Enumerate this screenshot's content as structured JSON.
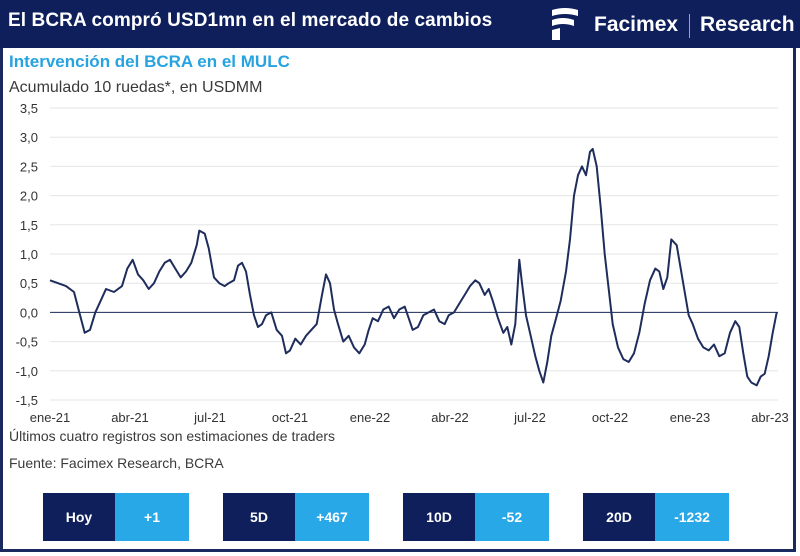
{
  "header": {
    "title": "El BCRA compró USD1mn en el mercado de cambios",
    "brand": "Facimex",
    "brand_section": "Research"
  },
  "colors": {
    "header_bg": "#0e1f5b",
    "accent": "#29a8e8",
    "title_color": "#27a3e0",
    "line": "#1f2d5c"
  },
  "chart_data": {
    "type": "line",
    "title": "Intervención del BCRA en el MULC",
    "subtitle": "Acumulado 10 ruedas*, en USDMM",
    "x_tick_labels": [
      "ene-21",
      "abr-21",
      "jul-21",
      "oct-21",
      "ene-22",
      "abr-22",
      "jul-22",
      "oct-22",
      "ene-23",
      "abr-23"
    ],
    "y_tick_labels": [
      "3,5",
      "3,0",
      "2,5",
      "2,0",
      "1,5",
      "1,0",
      "0,5",
      "0,0",
      "-0,5",
      "-1,0",
      "-1,5"
    ],
    "ylim": [
      -1.5,
      3.5
    ],
    "y_ticks": [
      3.5,
      3.0,
      2.5,
      2.0,
      1.5,
      1.0,
      0.5,
      0.0,
      -0.5,
      -1.0,
      -1.5
    ],
    "x_unit": "months since ene-21",
    "grid": "horizontal",
    "series": [
      {
        "points": [
          [
            0.0,
            0.55
          ],
          [
            0.3,
            0.5
          ],
          [
            0.6,
            0.45
          ],
          [
            0.9,
            0.35
          ],
          [
            1.1,
            0.0
          ],
          [
            1.3,
            -0.35
          ],
          [
            1.5,
            -0.3
          ],
          [
            1.7,
            0.0
          ],
          [
            1.9,
            0.2
          ],
          [
            2.1,
            0.4
          ],
          [
            2.4,
            0.35
          ],
          [
            2.7,
            0.45
          ],
          [
            2.9,
            0.75
          ],
          [
            3.1,
            0.9
          ],
          [
            3.3,
            0.65
          ],
          [
            3.5,
            0.55
          ],
          [
            3.7,
            0.4
          ],
          [
            3.9,
            0.5
          ],
          [
            4.1,
            0.7
          ],
          [
            4.3,
            0.85
          ],
          [
            4.5,
            0.9
          ],
          [
            4.7,
            0.75
          ],
          [
            4.9,
            0.6
          ],
          [
            5.1,
            0.7
          ],
          [
            5.3,
            0.85
          ],
          [
            5.5,
            1.15
          ],
          [
            5.6,
            1.4
          ],
          [
            5.8,
            1.35
          ],
          [
            5.95,
            1.1
          ],
          [
            6.15,
            0.6
          ],
          [
            6.35,
            0.5
          ],
          [
            6.55,
            0.45
          ],
          [
            6.7,
            0.5
          ],
          [
            6.9,
            0.55
          ],
          [
            7.05,
            0.8
          ],
          [
            7.2,
            0.85
          ],
          [
            7.35,
            0.7
          ],
          [
            7.5,
            0.3
          ],
          [
            7.65,
            -0.05
          ],
          [
            7.8,
            -0.25
          ],
          [
            7.95,
            -0.2
          ],
          [
            8.1,
            -0.05
          ],
          [
            8.3,
            0.0
          ],
          [
            8.5,
            -0.3
          ],
          [
            8.7,
            -0.4
          ],
          [
            8.85,
            -0.7
          ],
          [
            9.0,
            -0.65
          ],
          [
            9.2,
            -0.45
          ],
          [
            9.4,
            -0.55
          ],
          [
            9.6,
            -0.4
          ],
          [
            9.8,
            -0.3
          ],
          [
            10.0,
            -0.2
          ],
          [
            10.2,
            0.3
          ],
          [
            10.35,
            0.65
          ],
          [
            10.5,
            0.5
          ],
          [
            10.65,
            0.05
          ],
          [
            10.8,
            -0.2
          ],
          [
            11.0,
            -0.5
          ],
          [
            11.2,
            -0.4
          ],
          [
            11.4,
            -0.6
          ],
          [
            11.6,
            -0.7
          ],
          [
            11.8,
            -0.55
          ],
          [
            11.95,
            -0.3
          ],
          [
            12.1,
            -0.1
          ],
          [
            12.3,
            -0.15
          ],
          [
            12.5,
            0.05
          ],
          [
            12.7,
            0.1
          ],
          [
            12.9,
            -0.1
          ],
          [
            13.1,
            0.05
          ],
          [
            13.3,
            0.1
          ],
          [
            13.45,
            -0.1
          ],
          [
            13.6,
            -0.3
          ],
          [
            13.8,
            -0.25
          ],
          [
            14.0,
            -0.05
          ],
          [
            14.2,
            0.0
          ],
          [
            14.4,
            0.05
          ],
          [
            14.6,
            -0.15
          ],
          [
            14.8,
            -0.2
          ],
          [
            14.95,
            -0.05
          ],
          [
            15.15,
            0.0
          ],
          [
            15.35,
            0.15
          ],
          [
            15.55,
            0.3
          ],
          [
            15.75,
            0.45
          ],
          [
            15.95,
            0.55
          ],
          [
            16.1,
            0.5
          ],
          [
            16.3,
            0.3
          ],
          [
            16.45,
            0.4
          ],
          [
            16.6,
            0.2
          ],
          [
            16.8,
            -0.1
          ],
          [
            17.0,
            -0.35
          ],
          [
            17.15,
            -0.25
          ],
          [
            17.3,
            -0.55
          ],
          [
            17.45,
            -0.2
          ],
          [
            17.6,
            0.9
          ],
          [
            17.7,
            0.5
          ],
          [
            17.85,
            -0.05
          ],
          [
            18.0,
            -0.35
          ],
          [
            18.2,
            -0.75
          ],
          [
            18.35,
            -1.0
          ],
          [
            18.5,
            -1.2
          ],
          [
            18.65,
            -0.85
          ],
          [
            18.8,
            -0.4
          ],
          [
            18.95,
            -0.15
          ],
          [
            19.15,
            0.2
          ],
          [
            19.35,
            0.7
          ],
          [
            19.5,
            1.25
          ],
          [
            19.65,
            2.0
          ],
          [
            19.8,
            2.35
          ],
          [
            19.95,
            2.5
          ],
          [
            20.1,
            2.35
          ],
          [
            20.25,
            2.75
          ],
          [
            20.35,
            2.8
          ],
          [
            20.5,
            2.5
          ],
          [
            20.65,
            1.8
          ],
          [
            20.8,
            1.0
          ],
          [
            20.95,
            0.4
          ],
          [
            21.1,
            -0.2
          ],
          [
            21.3,
            -0.6
          ],
          [
            21.5,
            -0.8
          ],
          [
            21.7,
            -0.85
          ],
          [
            21.9,
            -0.7
          ],
          [
            22.1,
            -0.35
          ],
          [
            22.3,
            0.15
          ],
          [
            22.5,
            0.55
          ],
          [
            22.7,
            0.75
          ],
          [
            22.85,
            0.7
          ],
          [
            23.0,
            0.4
          ],
          [
            23.15,
            0.6
          ],
          [
            23.3,
            1.25
          ],
          [
            23.5,
            1.15
          ],
          [
            23.65,
            0.75
          ],
          [
            23.8,
            0.35
          ],
          [
            23.95,
            -0.05
          ],
          [
            24.1,
            -0.2
          ],
          [
            24.3,
            -0.45
          ],
          [
            24.5,
            -0.6
          ],
          [
            24.7,
            -0.65
          ],
          [
            24.9,
            -0.55
          ],
          [
            25.1,
            -0.75
          ],
          [
            25.3,
            -0.7
          ],
          [
            25.5,
            -0.35
          ],
          [
            25.7,
            -0.15
          ],
          [
            25.85,
            -0.25
          ],
          [
            26.0,
            -0.7
          ],
          [
            26.15,
            -1.1
          ],
          [
            26.3,
            -1.2
          ],
          [
            26.5,
            -1.25
          ],
          [
            26.65,
            -1.1
          ],
          [
            26.8,
            -1.05
          ],
          [
            26.95,
            -0.75
          ],
          [
            27.1,
            -0.35
          ],
          [
            27.25,
            0.0
          ]
        ]
      }
    ]
  },
  "notes": {
    "estimate_note": "Últimos cuatro registros son estimaciones de traders",
    "source": "Fuente: Facimex Research, BCRA"
  },
  "stats": [
    {
      "label": "Hoy",
      "value": "+1"
    },
    {
      "label": "5D",
      "value": "+467"
    },
    {
      "label": "10D",
      "value": "-52"
    },
    {
      "label": "20D",
      "value": "-1232"
    }
  ]
}
